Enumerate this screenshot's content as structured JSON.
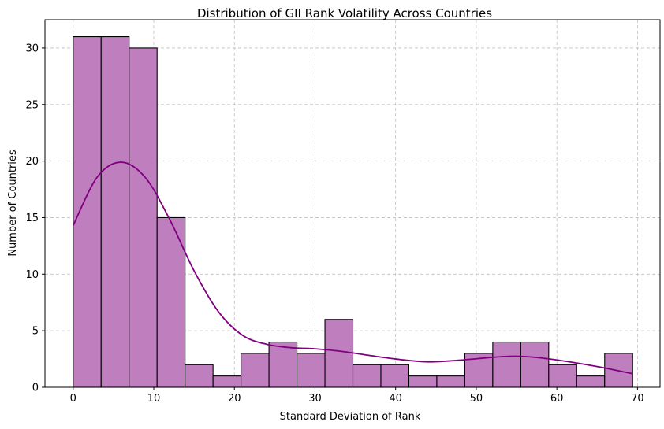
{
  "chart_data": {
    "type": "bar",
    "subtype": "histogram-with-kde",
    "title": "Distribution of GII Rank Volatility Across Countries",
    "xlabel": "Standard Deviation of Rank",
    "ylabel": "Number of Countries",
    "xlim": [
      -3.5,
      72.8
    ],
    "ylim": [
      0,
      32.5
    ],
    "xticks": [
      0,
      10,
      20,
      30,
      40,
      50,
      60,
      70
    ],
    "yticks": [
      0,
      5,
      10,
      15,
      20,
      25,
      30
    ],
    "grid": true,
    "bin_edges": [
      0,
      3.47,
      6.94,
      10.41,
      13.88,
      17.35,
      20.82,
      24.29,
      27.76,
      31.23,
      34.7,
      38.17,
      41.64,
      45.11,
      48.58,
      52.05,
      55.52,
      58.99,
      62.46,
      65.93,
      69.4
    ],
    "counts": [
      31,
      31,
      30,
      15,
      2,
      1,
      3,
      4,
      3,
      6,
      2,
      2,
      1,
      1,
      3,
      4,
      4,
      2,
      1,
      3
    ],
    "kde": {
      "x": [
        0,
        3,
        6,
        9,
        12,
        15,
        18,
        21,
        24,
        27,
        30,
        33,
        36,
        40,
        44,
        48,
        52,
        55,
        58,
        62,
        66,
        69.4
      ],
      "y": [
        14.3,
        18.6,
        19.9,
        18.5,
        14.8,
        10.3,
        6.7,
        4.6,
        3.8,
        3.5,
        3.4,
        3.2,
        2.9,
        2.5,
        2.25,
        2.4,
        2.65,
        2.75,
        2.6,
        2.2,
        1.7,
        1.2
      ]
    },
    "colors": {
      "bar_fill": "#bf7fbf",
      "bar_edge": "#000000",
      "kde_line": "#800080",
      "grid": "#c0c0c0"
    }
  }
}
